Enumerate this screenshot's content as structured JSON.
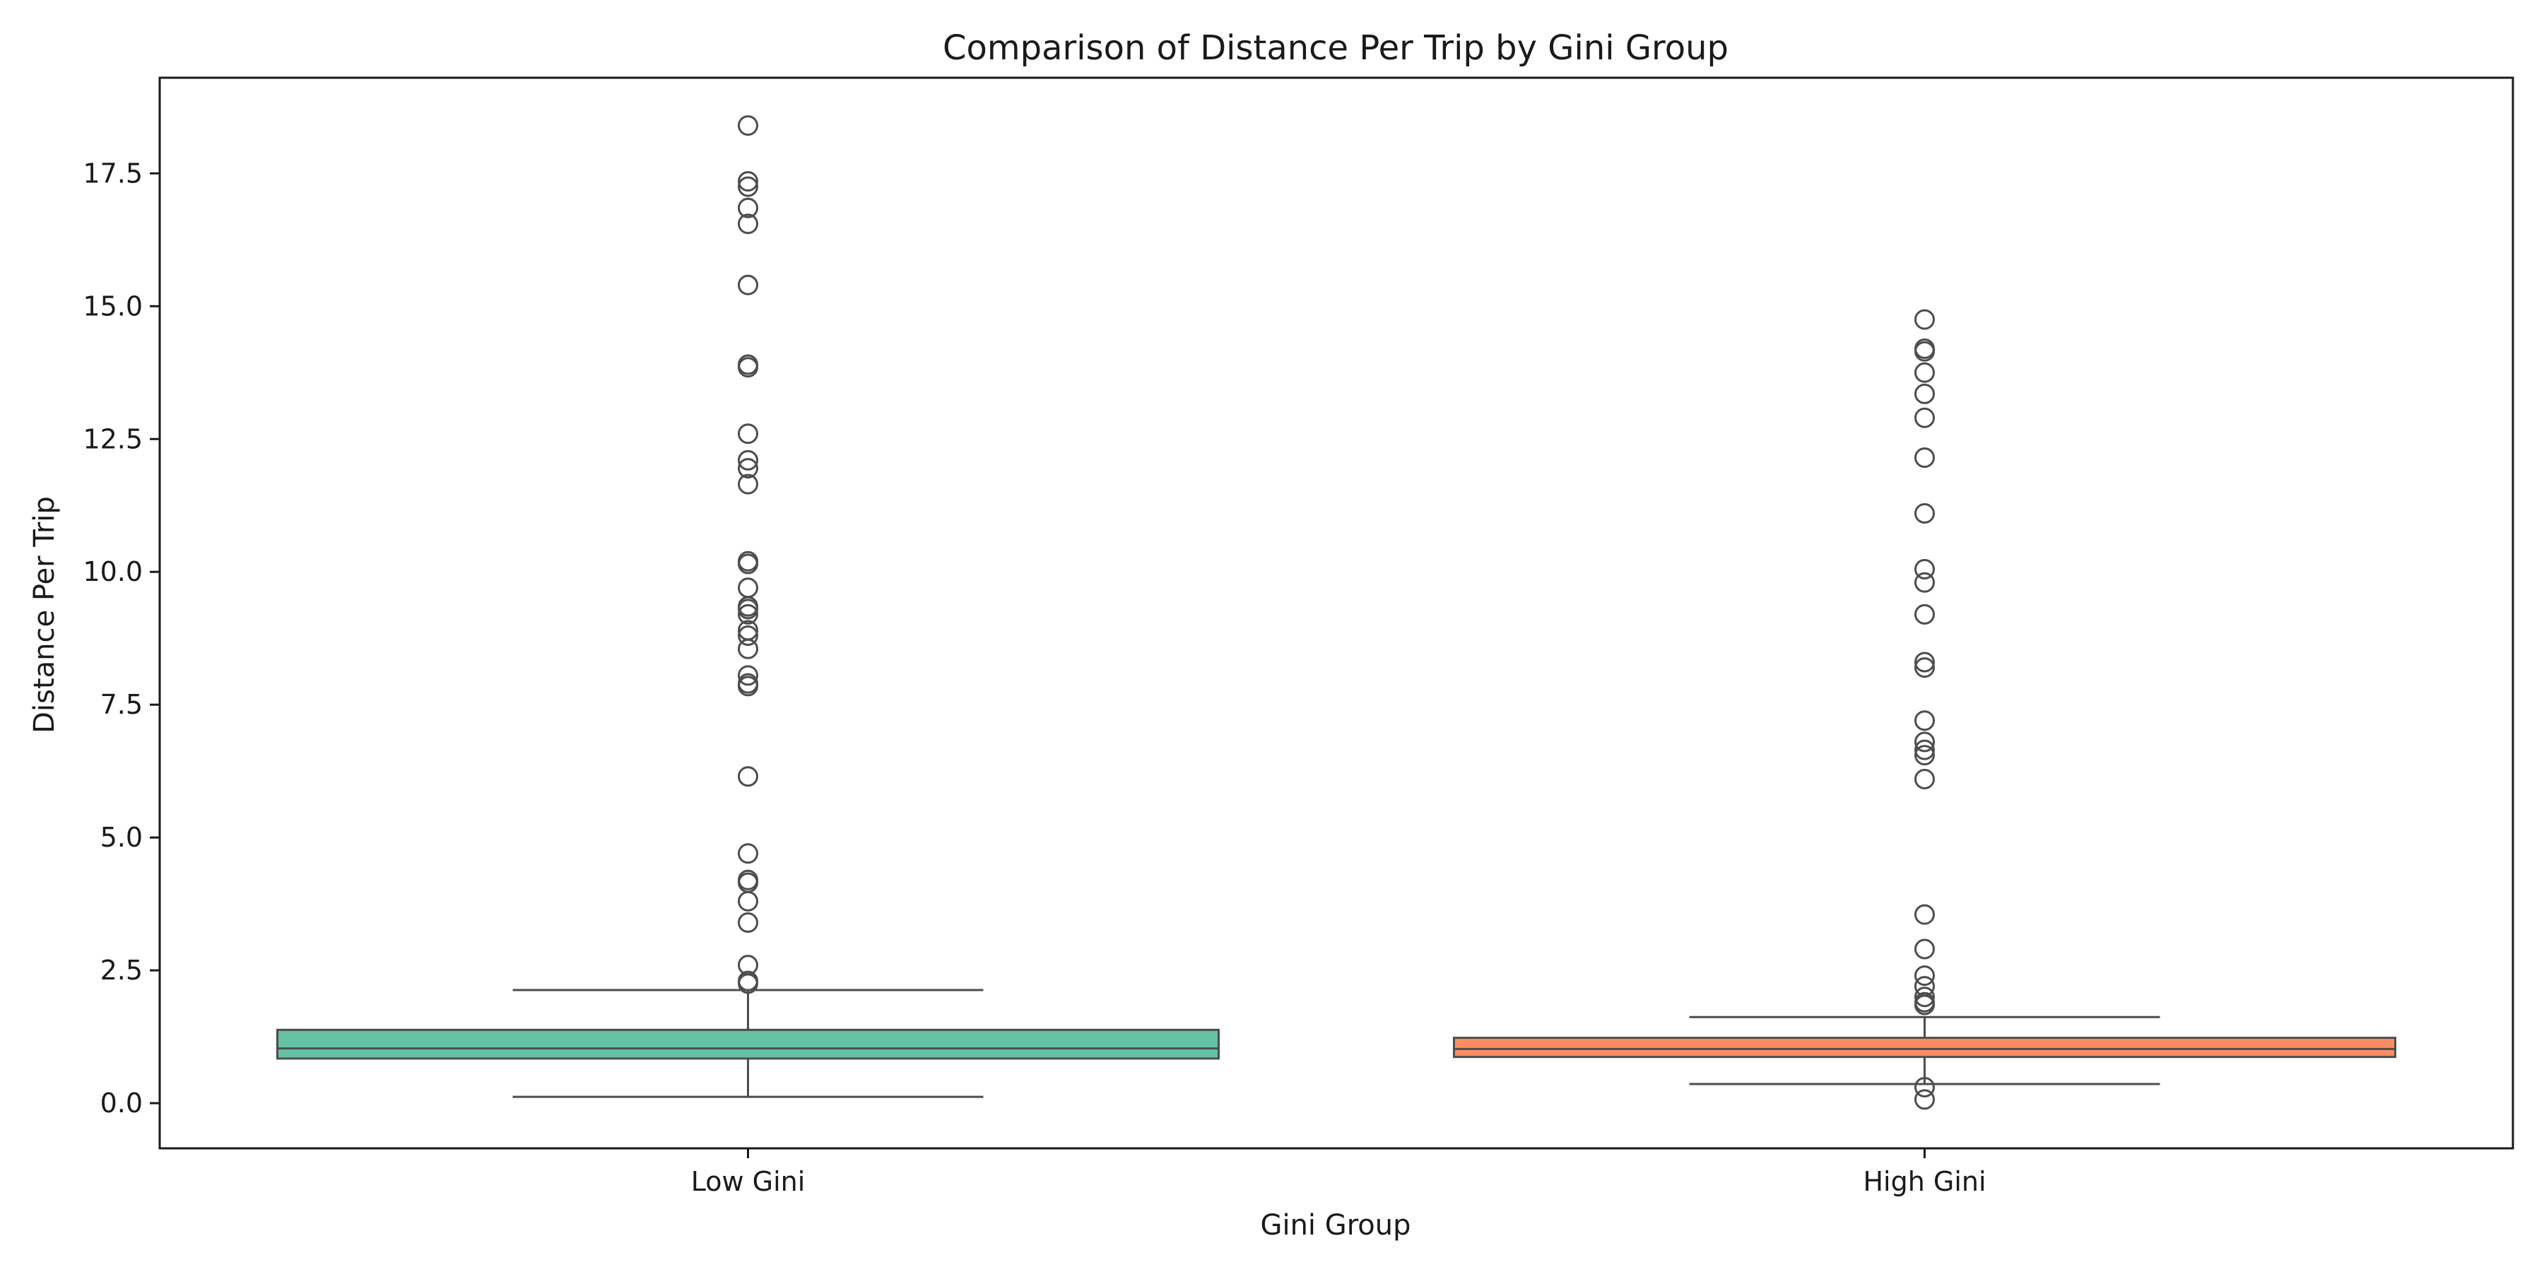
{
  "chart_data": {
    "type": "box",
    "title": "Comparison of Distance Per Trip by Gini Group",
    "xlabel": "Gini Group",
    "ylabel": "Distance Per Trip",
    "categories": [
      "Low Gini",
      "High Gini"
    ],
    "ylim": [
      -0.85,
      19.3
    ],
    "yticks": [
      0.0,
      2.5,
      5.0,
      7.5,
      10.0,
      12.5,
      15.0,
      17.5
    ],
    "ytick_labels": [
      "0.0",
      "2.5",
      "5.0",
      "7.5",
      "10.0",
      "12.5",
      "15.0",
      "17.5"
    ],
    "grid": false,
    "legend": "none",
    "groups": [
      {
        "category": "Low Gini",
        "color": "#66c2a5",
        "whisker_low": 0.12,
        "q1": 0.84,
        "median": 1.03,
        "q3": 1.38,
        "whisker_high": 2.13,
        "outliers": [
          2.25,
          2.3,
          2.6,
          3.4,
          3.8,
          4.15,
          4.2,
          4.7,
          6.15,
          7.85,
          7.9,
          8.05,
          8.55,
          8.8,
          8.9,
          9.2,
          9.3,
          9.35,
          9.7,
          10.15,
          10.2,
          11.65,
          11.95,
          12.1,
          12.6,
          13.85,
          13.9,
          15.4,
          16.55,
          16.85,
          17.25,
          17.35,
          18.4
        ]
      },
      {
        "category": "High Gini",
        "color": "#fc8d62",
        "whisker_low": 0.36,
        "q1": 0.87,
        "median": 1.02,
        "q3": 1.23,
        "whisker_high": 1.62,
        "outliers": [
          0.07,
          0.3,
          1.85,
          1.9,
          2.0,
          2.2,
          2.4,
          2.9,
          3.55,
          6.1,
          6.55,
          6.65,
          6.8,
          7.2,
          8.2,
          8.3,
          9.2,
          9.8,
          10.05,
          11.1,
          12.15,
          12.9,
          13.35,
          13.75,
          14.15,
          14.2,
          14.75
        ]
      }
    ]
  }
}
